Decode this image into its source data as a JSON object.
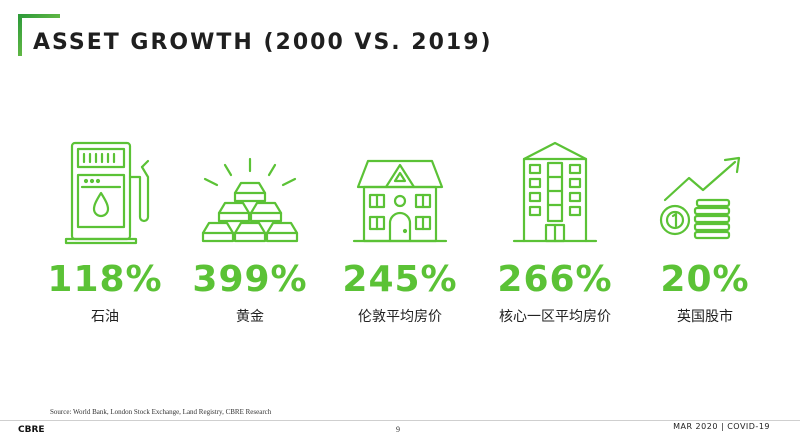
{
  "slide": {
    "title": "ASSET GROWTH (2000 VS. 2019)",
    "accent_color": "#5bc236"
  },
  "items": [
    {
      "icon": "fuel-pump-icon",
      "value": "118%",
      "label": "石油"
    },
    {
      "icon": "gold-bars-icon",
      "value": "399%",
      "label": "黄金"
    },
    {
      "icon": "house-icon",
      "value": "245%",
      "label": "伦敦平均房价"
    },
    {
      "icon": "apartment-building-icon",
      "value": "266%",
      "label": "核心一区平均房价"
    },
    {
      "icon": "stock-growth-icon",
      "value": "20%",
      "label": "英国股市"
    }
  ],
  "footer": {
    "source": "Source: World Bank, London Stock Exchange, Land Registry, CBRE Research",
    "brand": "CBRE",
    "page_number": "9",
    "right_text": "MAR 2020  |  COVID-19"
  }
}
